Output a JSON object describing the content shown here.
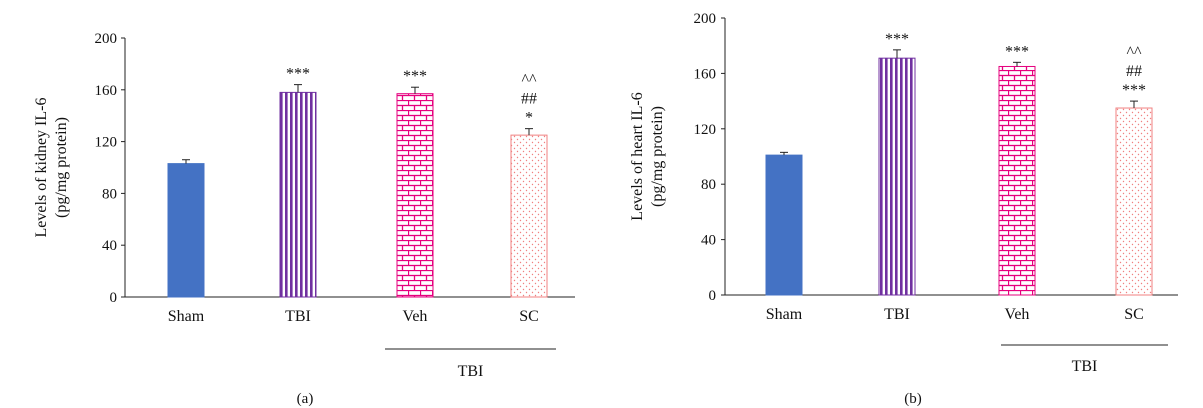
{
  "colors": {
    "sham": "#4472C4",
    "tbi": "#7030A0",
    "veh": "#E6007E",
    "sc": "#F08080",
    "axis": "#222222"
  },
  "chart_data": [
    {
      "type": "bar",
      "panel_label": "(a)",
      "ylabel": [
        "Levels of kidney IL-6",
        "(pg/mg protein)"
      ],
      "ylim": [
        0,
        200
      ],
      "yticks": [
        0,
        40,
        80,
        120,
        160,
        200
      ],
      "categories": [
        "Sham",
        "TBI",
        "Veh",
        "SC"
      ],
      "values": [
        103,
        158,
        157,
        125
      ],
      "errors": [
        3,
        6,
        5,
        5
      ],
      "patterns": [
        "solid",
        "vertical-stripes",
        "brick",
        "dots"
      ],
      "annotations": [
        [],
        [
          "***"
        ],
        [
          "***"
        ],
        [
          "^^",
          "##",
          "*"
        ]
      ],
      "group_label": "TBI",
      "grid": false
    },
    {
      "type": "bar",
      "panel_label": "(b)",
      "ylabel": [
        "Levels of heart IL-6",
        "(pg/mg protein)"
      ],
      "ylim": [
        0,
        200
      ],
      "yticks": [
        0,
        40,
        80,
        120,
        160,
        200
      ],
      "categories": [
        "Sham",
        "TBI",
        "Veh",
        "SC"
      ],
      "values": [
        101,
        171,
        165,
        135
      ],
      "errors": [
        2,
        6,
        3,
        5
      ],
      "patterns": [
        "solid",
        "vertical-stripes",
        "brick",
        "dots"
      ],
      "annotations": [
        [],
        [
          "***"
        ],
        [
          "***"
        ],
        [
          "^^",
          "##",
          "***"
        ]
      ],
      "group_label": "TBI",
      "grid": false
    }
  ]
}
